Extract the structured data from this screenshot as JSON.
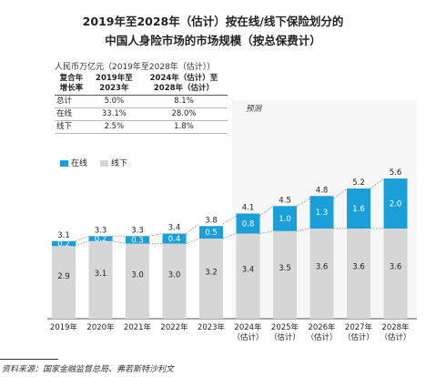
{
  "title_line1": "2019年至2028年（估计）按在线/线下保险划分的",
  "title_line2": "中国人身险市场的市场规模（按总保费计）",
  "unit_label": "人民币万亿元（2019年至2028年（估计））",
  "cagr_table": {
    "header": [
      "复合年增长率",
      "2019年至2023年",
      "2024年（估计）至2028年（估计）"
    ],
    "rows": [
      {
        "label": "总计",
        "v1": "5.0%",
        "v2": "8.1%"
      },
      {
        "label": "在线",
        "v1": "33.1%",
        "v2": "28.0%"
      },
      {
        "label": "线下",
        "v1": "2.5%",
        "v2": "1.8%"
      }
    ]
  },
  "forecast_label": "预测",
  "source": "资料来源：国家金融监督总局、弗若斯特沙利文",
  "colors": {
    "online": "#1a9fd8",
    "offline": "#d6d6d6",
    "forecast_bg": "#f7f7f7"
  },
  "chart_data": {
    "type": "bar",
    "stacked": true,
    "categories": [
      "2019年",
      "2020年",
      "2021年",
      "2022年",
      "2023年",
      "2024年（估计）",
      "2025年（估计）",
      "2026年（估计）",
      "2027年（估计）",
      "2028年（估计）"
    ],
    "series": [
      {
        "name": "线下",
        "values": [
          2.9,
          3.1,
          3.0,
          3.0,
          3.2,
          3.4,
          3.5,
          3.6,
          3.6,
          3.6
        ]
      },
      {
        "name": "在线",
        "values": [
          0.2,
          0.2,
          0.3,
          0.4,
          0.5,
          0.8,
          1.0,
          1.3,
          1.6,
          2.0
        ]
      }
    ],
    "totals": [
      3.1,
      3.3,
      3.3,
      3.4,
      3.8,
      4.1,
      4.5,
      4.8,
      5.2,
      5.6
    ],
    "forecast_start_index": 5,
    "legend": [
      "在线",
      "线下"
    ],
    "ylim": [
      0,
      6
    ]
  }
}
